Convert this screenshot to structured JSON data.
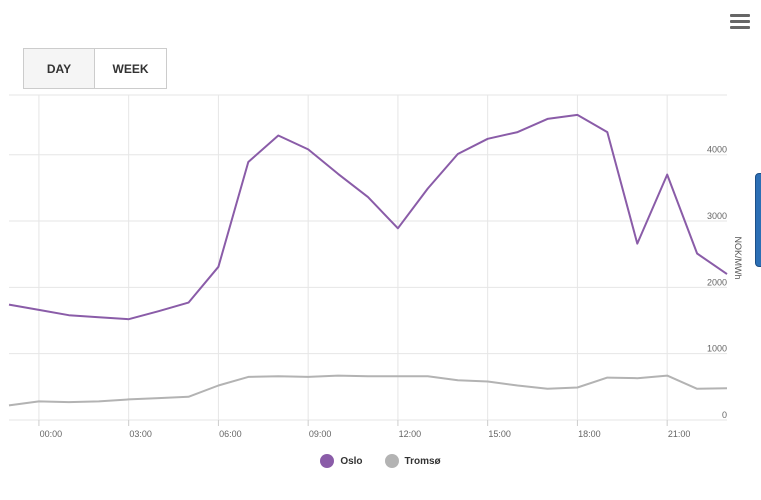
{
  "tabs": [
    {
      "label": "DAY",
      "active": true
    },
    {
      "label": "WEEK",
      "active": false
    }
  ],
  "menu_icon": "hamburger-menu-icon",
  "chart_data": {
    "type": "line",
    "ylabel": "NOK/MWh",
    "ylim": [
      0,
      4900
    ],
    "y_ticks": [
      "0",
      "1000",
      "2000",
      "3000",
      "4000"
    ],
    "x_ticks": [
      "00:00",
      "03:00",
      "06:00",
      "09:00",
      "12:00",
      "15:00",
      "18:00",
      "21:00"
    ],
    "x": [
      "23:00",
      "00:00",
      "01:00",
      "02:00",
      "03:00",
      "04:00",
      "05:00",
      "06:00",
      "07:00",
      "08:00",
      "09:00",
      "10:00",
      "11:00",
      "12:00",
      "13:00",
      "14:00",
      "15:00",
      "16:00",
      "17:00",
      "18:00",
      "19:00",
      "20:00",
      "21:00",
      "22:00",
      "23:00"
    ],
    "series": [
      {
        "name": "Oslo",
        "color": "#8a5ca8",
        "values": [
          1740,
          1660,
          1580,
          1550,
          1520,
          1640,
          1770,
          2310,
          3890,
          4290,
          4080,
          3710,
          3360,
          2890,
          3490,
          4010,
          4240,
          4340,
          4540,
          4600,
          4340,
          2660,
          3700,
          2510,
          2200
        ]
      },
      {
        "name": "Tromsø",
        "color": "#b3b3b3",
        "values": [
          220,
          280,
          270,
          280,
          310,
          330,
          350,
          520,
          650,
          660,
          650,
          670,
          660,
          660,
          660,
          600,
          580,
          520,
          470,
          490,
          640,
          630,
          670,
          470,
          480
        ]
      }
    ],
    "grid": true,
    "legend": "bottom-center"
  }
}
